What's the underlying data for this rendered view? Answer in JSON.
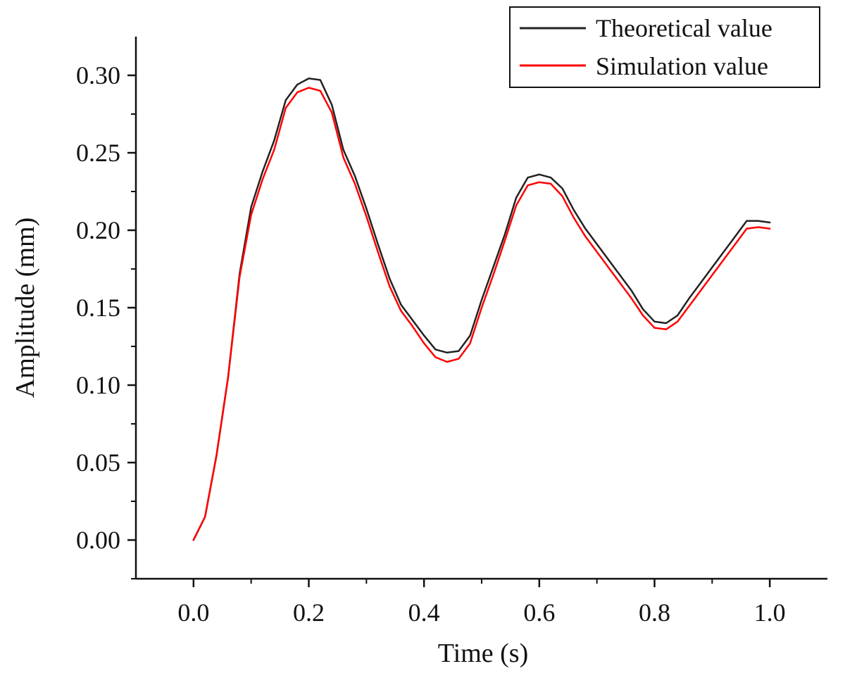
{
  "chart_data": {
    "type": "line",
    "title": "",
    "xlabel": "Time (s)",
    "ylabel": "Amplitude (mm)",
    "xlim": [
      -0.1,
      1.1
    ],
    "ylim": [
      -0.025,
      0.325
    ],
    "xticks": [
      "0.0",
      "0.2",
      "0.4",
      "0.6",
      "0.8",
      "1.0"
    ],
    "xtick_values": [
      0.0,
      0.2,
      0.4,
      0.6,
      0.8,
      1.0
    ],
    "yticks": [
      "0.00",
      "0.05",
      "0.10",
      "0.15",
      "0.20",
      "0.25",
      "0.30"
    ],
    "ytick_values": [
      0.0,
      0.05,
      0.1,
      0.15,
      0.2,
      0.25,
      0.3
    ],
    "grid": false,
    "legend_position": "top-right",
    "series": [
      {
        "name": "Theoretical value",
        "color": "#222222",
        "x": [
          0.0,
          0.02,
          0.04,
          0.06,
          0.08,
          0.1,
          0.12,
          0.14,
          0.16,
          0.18,
          0.2,
          0.22,
          0.24,
          0.26,
          0.28,
          0.3,
          0.32,
          0.34,
          0.36,
          0.38,
          0.4,
          0.42,
          0.44,
          0.46,
          0.48,
          0.5,
          0.52,
          0.54,
          0.56,
          0.58,
          0.6,
          0.62,
          0.64,
          0.66,
          0.68,
          0.7,
          0.72,
          0.74,
          0.76,
          0.78,
          0.8,
          0.82,
          0.84,
          0.86,
          0.88,
          0.9,
          0.92,
          0.94,
          0.96,
          0.98,
          1.0
        ],
        "y": [
          0.0,
          0.015,
          0.055,
          0.105,
          0.172,
          0.215,
          0.238,
          0.258,
          0.284,
          0.294,
          0.298,
          0.297,
          0.281,
          0.252,
          0.235,
          0.214,
          0.191,
          0.169,
          0.152,
          0.142,
          0.132,
          0.123,
          0.121,
          0.122,
          0.132,
          0.155,
          0.176,
          0.197,
          0.221,
          0.234,
          0.236,
          0.234,
          0.227,
          0.213,
          0.201,
          0.191,
          0.181,
          0.171,
          0.161,
          0.149,
          0.141,
          0.14,
          0.145,
          0.156,
          0.166,
          0.176,
          0.186,
          0.196,
          0.206,
          0.206,
          0.205
        ]
      },
      {
        "name": "Simulation value",
        "color": "#ff0000",
        "x": [
          0.0,
          0.02,
          0.04,
          0.06,
          0.08,
          0.1,
          0.12,
          0.14,
          0.16,
          0.18,
          0.2,
          0.22,
          0.24,
          0.26,
          0.28,
          0.3,
          0.32,
          0.34,
          0.36,
          0.38,
          0.4,
          0.42,
          0.44,
          0.46,
          0.48,
          0.5,
          0.52,
          0.54,
          0.56,
          0.58,
          0.6,
          0.62,
          0.64,
          0.66,
          0.68,
          0.7,
          0.72,
          0.74,
          0.76,
          0.78,
          0.8,
          0.82,
          0.84,
          0.86,
          0.88,
          0.9,
          0.92,
          0.94,
          0.96,
          0.98,
          1.0
        ],
        "y": [
          0.0,
          0.015,
          0.055,
          0.105,
          0.17,
          0.21,
          0.233,
          0.252,
          0.279,
          0.289,
          0.292,
          0.29,
          0.276,
          0.247,
          0.23,
          0.209,
          0.186,
          0.164,
          0.148,
          0.138,
          0.127,
          0.118,
          0.115,
          0.117,
          0.127,
          0.15,
          0.171,
          0.193,
          0.216,
          0.229,
          0.231,
          0.23,
          0.222,
          0.208,
          0.196,
          0.186,
          0.176,
          0.166,
          0.156,
          0.145,
          0.137,
          0.136,
          0.141,
          0.151,
          0.161,
          0.171,
          0.181,
          0.191,
          0.201,
          0.202,
          0.201
        ]
      }
    ]
  }
}
